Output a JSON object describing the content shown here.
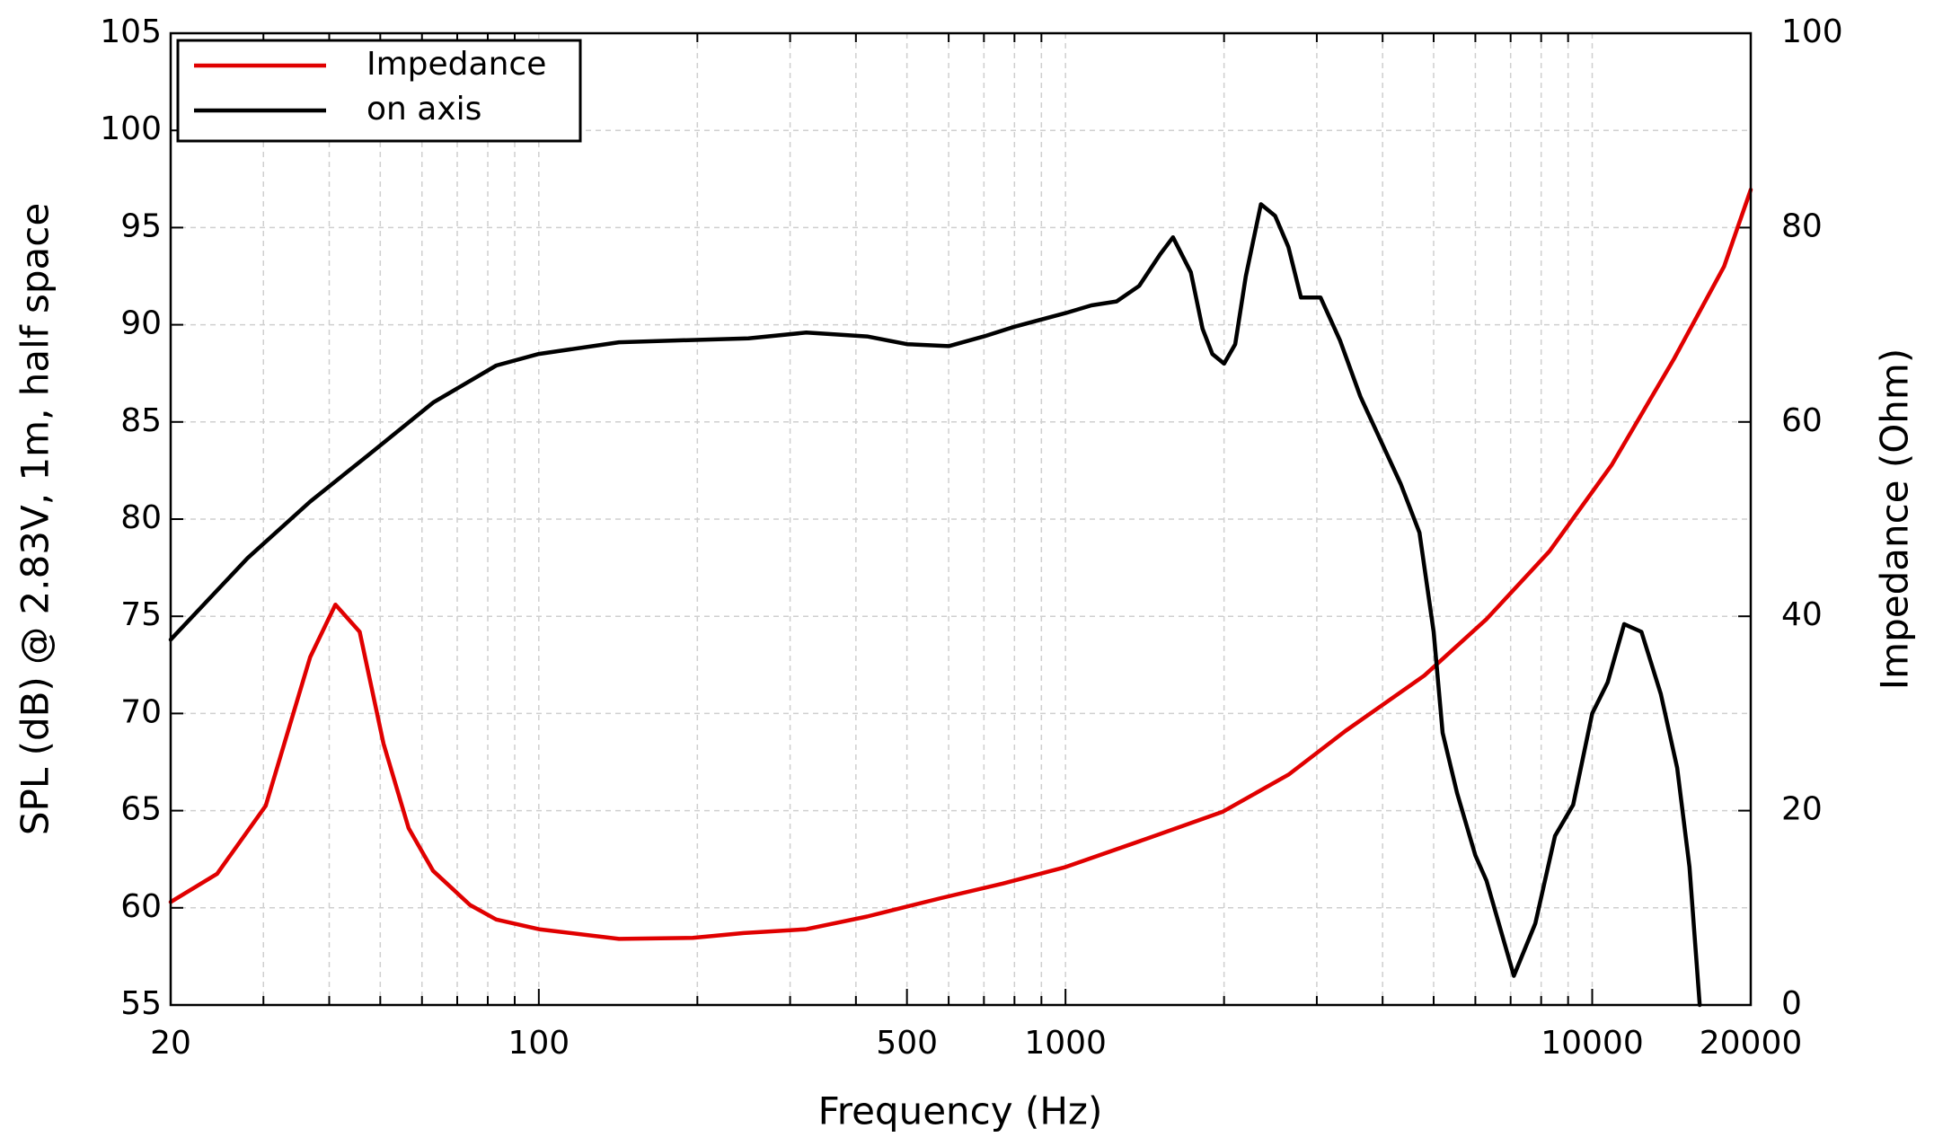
{
  "chart_data": {
    "type": "line",
    "xlabel": "Frequency (Hz)",
    "ylabel": "SPL (dB) @ 2.83V, 1m, half space",
    "y2label": "Impedance (Ohm)",
    "xscale": "log",
    "xlim": [
      20,
      20000
    ],
    "xticks": [
      20,
      100,
      500,
      1000,
      10000,
      20000
    ],
    "xminor": [
      30,
      40,
      50,
      60,
      70,
      80,
      90,
      200,
      300,
      400,
      600,
      700,
      800,
      900,
      2000,
      3000,
      4000,
      5000,
      6000,
      7000,
      8000,
      9000
    ],
    "ylim": [
      55,
      105
    ],
    "yticks": [
      55,
      60,
      65,
      70,
      75,
      80,
      85,
      90,
      95,
      100,
      105
    ],
    "y2lim": [
      0,
      100
    ],
    "y2ticks": [
      0,
      20,
      40,
      60,
      80,
      100
    ],
    "grid": true,
    "legend": "upper left",
    "series": [
      {
        "name": "Impedance",
        "color": "#e00000",
        "axis": "y2",
        "x": [
          20,
          24.5,
          30.3,
          36.8,
          41.1,
          45.7,
          50.7,
          56.6,
          63,
          74,
          83,
          100,
          142,
          196,
          245,
          322,
          420,
          580,
          760,
          1000,
          1460,
          1990,
          2650,
          3400,
          4800,
          6300,
          8300,
          10900,
          14300,
          17800,
          20000
        ],
        "values": [
          10.6,
          13.5,
          20.5,
          35.8,
          41.2,
          38.4,
          26.9,
          18.2,
          13.8,
          10.3,
          8.8,
          7.8,
          6.8,
          6.9,
          7.4,
          7.8,
          9.1,
          11,
          12.5,
          14.2,
          17.3,
          19.9,
          23.7,
          28.2,
          33.9,
          39.7,
          46.7,
          55.6,
          66.5,
          76,
          83.9
        ]
      },
      {
        "name": "on axis",
        "color": "#000000",
        "x": [
          20,
          28,
          36.8,
          48,
          63,
          83,
          100,
          142,
          187,
          250,
          322,
          420,
          500,
          600,
          700,
          800,
          1000,
          1120,
          1250,
          1380,
          1510,
          1600,
          1730,
          1820,
          1900,
          2000,
          2100,
          2200,
          2350,
          2500,
          2650,
          2800,
          3050,
          3320,
          3630,
          4330,
          4700,
          5000,
          5200,
          5540,
          6000,
          6300,
          7100,
          7800,
          8500,
          9200,
          10000,
          10700,
          11500,
          12400,
          13500,
          14500,
          15300,
          16000
        ],
        "values": [
          73.8,
          78,
          80.9,
          83.4,
          86,
          87.9,
          88.5,
          89.1,
          89.2,
          89.3,
          89.6,
          89.4,
          89.0,
          88.9,
          89.4,
          89.9,
          90.6,
          91.0,
          91.2,
          92,
          93.6,
          94.5,
          92.7,
          89.8,
          88.5,
          88,
          89,
          92.5,
          96.2,
          95.6,
          94,
          91.4,
          91.4,
          89.2,
          86.3,
          81.8,
          79.3,
          74.2,
          69,
          65.9,
          62.7,
          61.4,
          56.5,
          59.2,
          63.7,
          65.3,
          70,
          71.6,
          74.6,
          74.2,
          71,
          67.2,
          62.1,
          55
        ]
      }
    ]
  }
}
